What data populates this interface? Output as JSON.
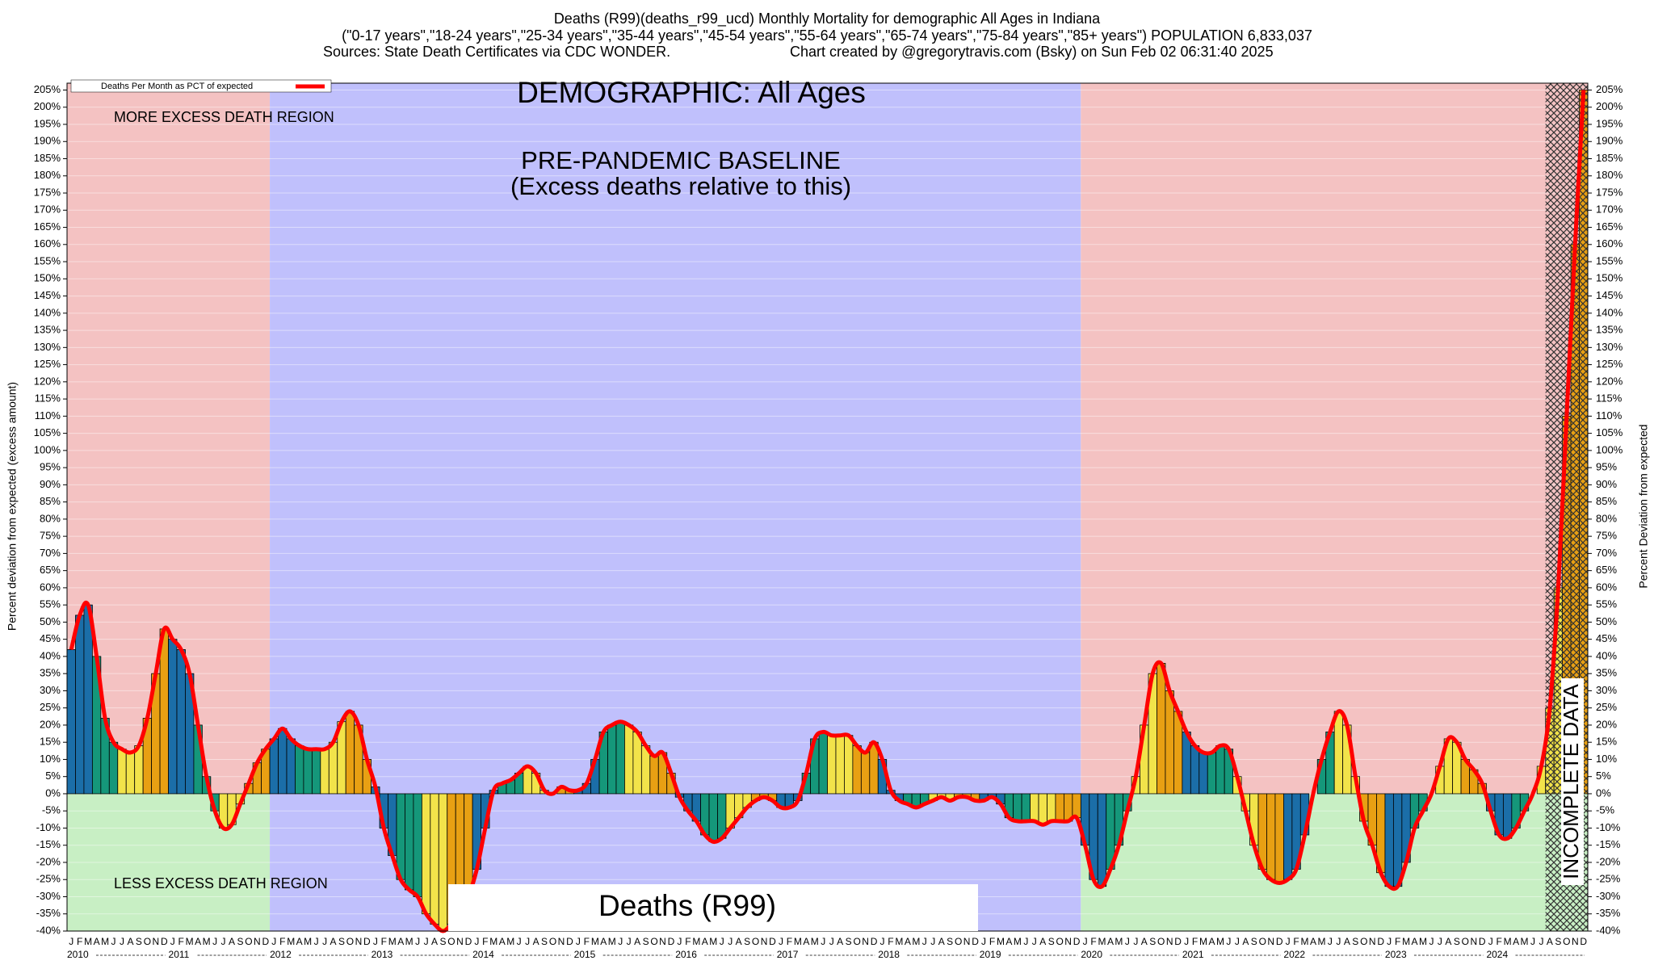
{
  "chart_data": {
    "type": "bar",
    "title": "Deaths (R99)(deaths_r99_ucd) Monthly Mortality for demographic All Ages in Indiana",
    "subtitle": "(\"0-17 years\",\"18-24 years\",\"25-34 years\",\"35-44 years\",\"45-54 years\",\"55-64 years\",\"65-74 years\",\"75-84 years\",\"85+ years\") POPULATION 6,833,037",
    "source": "Sources: State Death Certificates via CDC WONDER.",
    "credit": "Chart created by @gregorytravis.com (Bsky) on Sun Feb 02 06:31:40 2025",
    "heading": "DEMOGRAPHIC: All Ages",
    "baseline_label": [
      "PRE-PANDEMIC BASELINE",
      "(Excess deaths relative to this)"
    ],
    "upper_region_label": "MORE EXCESS DEATH REGION",
    "lower_region_label": "LESS EXCESS DEATH REGION",
    "cause_label": "Deaths (R99)",
    "incomplete_label": "INCOMPLETE DATA",
    "legend_label": "Deaths Per Month as PCT of expected",
    "ylabel": "Percent deviation from expected (excess amount)",
    "y2label": "Percent Deviation from expected",
    "line_color": "#ff0000",
    "bar_colors": [
      "#1b6ea8",
      "#15977a",
      "#f2e34a",
      "#e8a013"
    ],
    "years": [
      "2010",
      "2011",
      "2012",
      "2013",
      "2014",
      "2015",
      "2016",
      "2017",
      "2018",
      "2019",
      "2020",
      "2021",
      "2022",
      "2023",
      "2024"
    ],
    "categories": [
      "J",
      "F",
      "M",
      "A",
      "M",
      "J",
      "J",
      "A",
      "S",
      "O",
      "N",
      "D",
      "J",
      "F",
      "M",
      "A",
      "M",
      "J",
      "J",
      "A",
      "S",
      "O",
      "N",
      "D",
      "J",
      "F",
      "M",
      "A",
      "M",
      "J",
      "J",
      "A",
      "S",
      "O",
      "N",
      "D",
      "J",
      "F",
      "M",
      "A",
      "M",
      "J",
      "J",
      "A",
      "S",
      "O",
      "N",
      "D",
      "J",
      "F",
      "M",
      "A",
      "M",
      "J",
      "J",
      "A",
      "S",
      "O",
      "N",
      "D",
      "J",
      "F",
      "M",
      "A",
      "M",
      "J",
      "J",
      "A",
      "S",
      "O",
      "N",
      "D",
      "J",
      "F",
      "M",
      "A",
      "M",
      "J",
      "J",
      "A",
      "S",
      "O",
      "N",
      "D",
      "J",
      "F",
      "M",
      "A",
      "M",
      "J",
      "J",
      "A",
      "S",
      "O",
      "N",
      "D",
      "J",
      "F",
      "M",
      "A",
      "M",
      "J",
      "J",
      "A",
      "S",
      "O",
      "N",
      "D",
      "J",
      "F",
      "M",
      "A",
      "M",
      "J",
      "J",
      "A",
      "S",
      "O",
      "N",
      "D",
      "J",
      "F",
      "M",
      "A",
      "M",
      "J",
      "J",
      "A",
      "S",
      "O",
      "N",
      "D",
      "J",
      "F",
      "M",
      "A",
      "M",
      "J",
      "J",
      "A",
      "S",
      "O",
      "N",
      "D",
      "J",
      "F",
      "M",
      "A",
      "M",
      "J",
      "J",
      "A",
      "S",
      "O",
      "N",
      "D",
      "J",
      "F",
      "M",
      "A",
      "M",
      "J",
      "J",
      "A",
      "S",
      "O",
      "N",
      "D",
      "J",
      "F",
      "M",
      "A",
      "M",
      "J",
      "J",
      "A",
      "S",
      "O",
      "N",
      "D"
    ],
    "values": [
      42,
      52,
      55,
      40,
      22,
      15,
      13,
      12,
      14,
      22,
      35,
      48,
      45,
      42,
      35,
      20,
      5,
      -5,
      -10,
      -9,
      -3,
      3,
      9,
      13,
      16,
      19,
      16,
      14,
      13,
      13,
      13,
      15,
      21,
      24,
      20,
      10,
      2,
      -10,
      -18,
      -25,
      -28,
      -30,
      -35,
      -38,
      -40,
      -38,
      -35,
      -30,
      -22,
      -10,
      1,
      3,
      4,
      6,
      8,
      6,
      1,
      0,
      2,
      1,
      1,
      3,
      10,
      18,
      20,
      21,
      20,
      18,
      14,
      11,
      12,
      6,
      -1,
      -5,
      -8,
      -12,
      -14,
      -13,
      -10,
      -7,
      -4,
      -2,
      -1,
      -2,
      -4,
      -4,
      -2,
      6,
      16,
      18,
      17,
      17,
      17,
      14,
      12,
      15,
      10,
      1,
      -2,
      -3,
      -4,
      -3,
      -2,
      -1,
      -2,
      -1,
      -1,
      -2,
      -2,
      -1,
      -3,
      -7,
      -8,
      -8,
      -8,
      -9,
      -8,
      -8,
      -8,
      -7,
      -15,
      -25,
      -27,
      -22,
      -15,
      -5,
      5,
      20,
      35,
      38,
      30,
      24,
      18,
      14,
      12,
      12,
      14,
      13,
      5,
      -5,
      -15,
      -22,
      -25,
      -26,
      -25,
      -22,
      -12,
      0,
      10,
      18,
      24,
      20,
      5,
      -8,
      -15,
      -23,
      -27,
      -27,
      -20,
      -10,
      -5,
      0,
      8,
      16,
      15,
      10,
      7,
      3,
      -5,
      -12,
      -13,
      -10,
      -5,
      0,
      8,
      25,
      60,
      110,
      160,
      205
    ],
    "ylim": [
      -40,
      207
    ],
    "yticks": [
      {
        "value": -40,
        "label": "-40%"
      },
      {
        "value": -35,
        "label": "-35%"
      },
      {
        "value": -30,
        "label": "-30%"
      },
      {
        "value": -25,
        "label": "-25%"
      },
      {
        "value": -20,
        "label": "-20%"
      },
      {
        "value": -15,
        "label": "-15%"
      },
      {
        "value": -10,
        "label": "-10%"
      },
      {
        "value": -5,
        "label": "-5%"
      },
      {
        "value": 0,
        "label": "0%"
      },
      {
        "value": 5,
        "label": "5%"
      },
      {
        "value": 10,
        "label": "10%"
      },
      {
        "value": 15,
        "label": "15%"
      },
      {
        "value": 20,
        "label": "20%"
      },
      {
        "value": 25,
        "label": "25%"
      },
      {
        "value": 30,
        "label": "30%"
      },
      {
        "value": 35,
        "label": "35%"
      },
      {
        "value": 40,
        "label": "40%"
      },
      {
        "value": 45,
        "label": "45%"
      },
      {
        "value": 50,
        "label": "50%"
      },
      {
        "value": 55,
        "label": "55%"
      },
      {
        "value": 60,
        "label": "60%"
      },
      {
        "value": 65,
        "label": "65%"
      },
      {
        "value": 70,
        "label": "70%"
      },
      {
        "value": 75,
        "label": "75%"
      },
      {
        "value": 80,
        "label": "80%"
      },
      {
        "value": 85,
        "label": "85%"
      },
      {
        "value": 90,
        "label": "90%"
      },
      {
        "value": 95,
        "label": "95%"
      },
      {
        "value": 100,
        "label": "100%"
      },
      {
        "value": 105,
        "label": "105%"
      },
      {
        "value": 110,
        "label": "110%"
      },
      {
        "value": 115,
        "label": "115%"
      },
      {
        "value": 120,
        "label": "120%"
      },
      {
        "value": 125,
        "label": "125%"
      },
      {
        "value": 130,
        "label": "130%"
      },
      {
        "value": 135,
        "label": "135%"
      },
      {
        "value": 140,
        "label": "140%"
      },
      {
        "value": 145,
        "label": "145%"
      },
      {
        "value": 150,
        "label": "150%"
      },
      {
        "value": 155,
        "label": "155%"
      },
      {
        "value": 160,
        "label": "160%"
      },
      {
        "value": 165,
        "label": "165%"
      },
      {
        "value": 170,
        "label": "170%"
      },
      {
        "value": 175,
        "label": "175%"
      },
      {
        "value": 180,
        "label": "180%"
      },
      {
        "value": 185,
        "label": "185%"
      },
      {
        "value": 190,
        "label": "190%"
      },
      {
        "value": 195,
        "label": "195%"
      },
      {
        "value": 200,
        "label": "200%"
      },
      {
        "value": 205,
        "label": "205%"
      }
    ],
    "grid": true
  }
}
